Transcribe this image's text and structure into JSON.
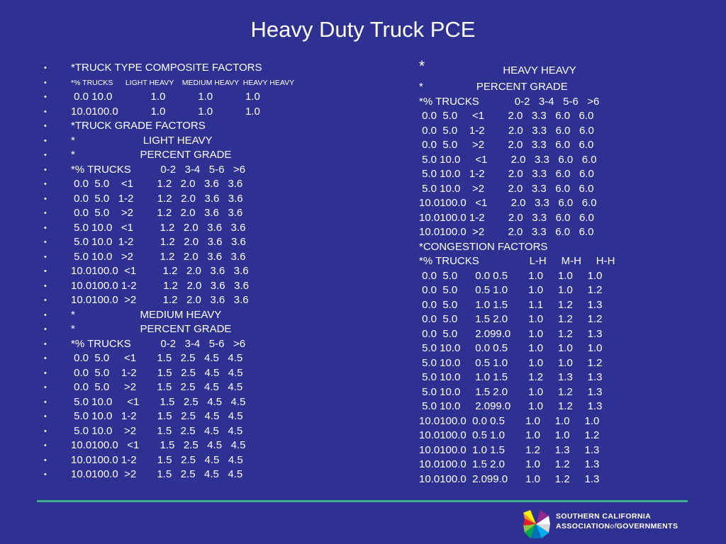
{
  "title": "Heavy Duty Truck PCE",
  "left_lines": [
    "*TRUCK TYPE COMPOSITE FACTORS",
    "*% TRUCKS      LIGHT HEAVY    MEDIUM HEAVY  HEAVY HEAVY",
    " 0.0 10.0             1.0           1.0           1.0",
    "10.0100.0           1.0           1.0           1.0",
    "*TRUCK GRADE FACTORS",
    "*                       LIGHT HEAVY",
    "*                      PERCENT GRADE",
    "*% TRUCKS          0-2   3-4   5-6   >6",
    " 0.0  5.0    <1        1.2   2.0   3.6   3.6",
    " 0.0  5.0   1-2        1.2   2.0   3.6   3.6",
    " 0.0  5.0    >2        1.2   2.0   3.6   3.6",
    " 5.0 10.0   <1         1.2   2.0   3.6   3.6",
    " 5.0 10.0  1-2         1.2   2.0   3.6   3.6",
    " 5.0 10.0   >2         1.2   2.0   3.6   3.6",
    "10.0100.0  <1         1.2   2.0   3.6   3.6",
    "10.0100.0 1-2         1.2   2.0   3.6   3.6",
    "10.0100.0  >2         1.2   2.0   3.6   3.6",
    "*                      MEDIUM HEAVY",
    "*                      PERCENT GRADE",
    "*% TRUCKS          0-2   3-4   5-6   >6",
    " 0.0  5.0     <1       1.5   2.5   4.5   4.5",
    " 0.0  5.0    1-2       1.5   2.5   4.5   4.5",
    " 0.0  5.0     >2       1.5   2.5   4.5   4.5",
    " 5.0 10.0     <1       1.5   2.5   4.5   4.5",
    " 5.0 10.0   1-2       1.5   2.5   4.5   4.5",
    " 5.0 10.0    >2       1.5   2.5   4.5   4.5",
    "10.0100.0   <1       1.5   2.5   4.5   4.5",
    "10.0100.0 1-2       1.5   2.5   4.5   4.5",
    "10.0100.0  >2       1.5   2.5   4.5   4.5"
  ],
  "left_small_line_index": 1,
  "bullet_char": "•",
  "right_star": "*",
  "right_heading": "HEAVY HEAVY",
  "right_lines": [
    "*                  PERCENT GRADE",
    "*% TRUCKS            0-2   3-4   5-6   >6",
    " 0.0  5.0     <1        2.0   3.3   6.0   6.0",
    " 0.0  5.0    1-2        2.0   3.3   6.0   6.0",
    " 0.0  5.0     >2        2.0   3.3   6.0   6.0",
    " 5.0 10.0     <1        2.0   3.3   6.0   6.0",
    " 5.0 10.0   1-2        2.0   3.3   6.0   6.0",
    " 5.0 10.0    >2        2.0   3.3   6.0   6.0",
    "10.0100.0   <1        2.0   3.3   6.0   6.0",
    "10.0100.0 1-2        2.0   3.3   6.0   6.0",
    "10.0100.0  >2        2.0   3.3   6.0   6.0",
    "*CONGESTION FACTORS",
    "*% TRUCKS                 L-H     M-H     H-H",
    " 0.0  5.0      0.0 0.5       1.0     1.0     1.0",
    " 0.0  5.0      0.5 1.0       1.0     1.0     1.2",
    " 0.0  5.0      1.0 1.5       1.1     1.2     1.3",
    " 0.0  5.0      1.5 2.0       1.0     1.2     1.2",
    " 0.0  5.0      2.099.0      1.0     1.2     1.3",
    " 5.0 10.0     0.0 0.5       1.0     1.0     1.0",
    " 5.0 10.0     0.5 1.0       1.0     1.0     1.2",
    " 5.0 10.0     1.0 1.5       1.2     1.3     1.3",
    " 5.0 10.0     1.5 2.0       1.0     1.2     1.3",
    " 5.0 10.0     2.099.0      1.0     1.2     1.3",
    "10.0100.0  0.0 0.5       1.0     1.0     1.0",
    "10.0100.0  0.5 1.0       1.0     1.0     1.2",
    "10.0100.0  1.0 1.5       1.2     1.3     1.3",
    "10.0100.0  1.5 2.0       1.0     1.2     1.3",
    "10.0100.0  2.099.0      1.0     1.2     1.3"
  ],
  "logo": {
    "line1": "SOUTHERN CALIFORNIA",
    "line2_a": "ASSOCIATION",
    "line2_of": "of",
    "line2_b": "GOVERNMENTS"
  },
  "colors": {
    "background": "#2e3192",
    "text": "#ffffff",
    "divider": "#3fae8c"
  }
}
